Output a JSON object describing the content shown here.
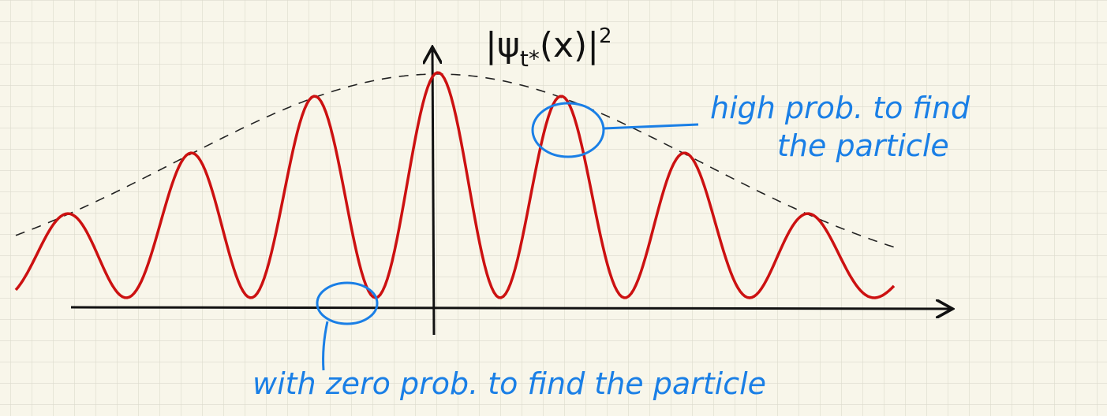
{
  "axis_label": {
    "main": "|ψ",
    "sub": "t*",
    "rest": "(x)|",
    "sup": "2"
  },
  "annotations": {
    "high_prob": [
      "high prob. to find",
      "the particle"
    ],
    "zero_prob": "with zero prob. to find the particle"
  }
}
